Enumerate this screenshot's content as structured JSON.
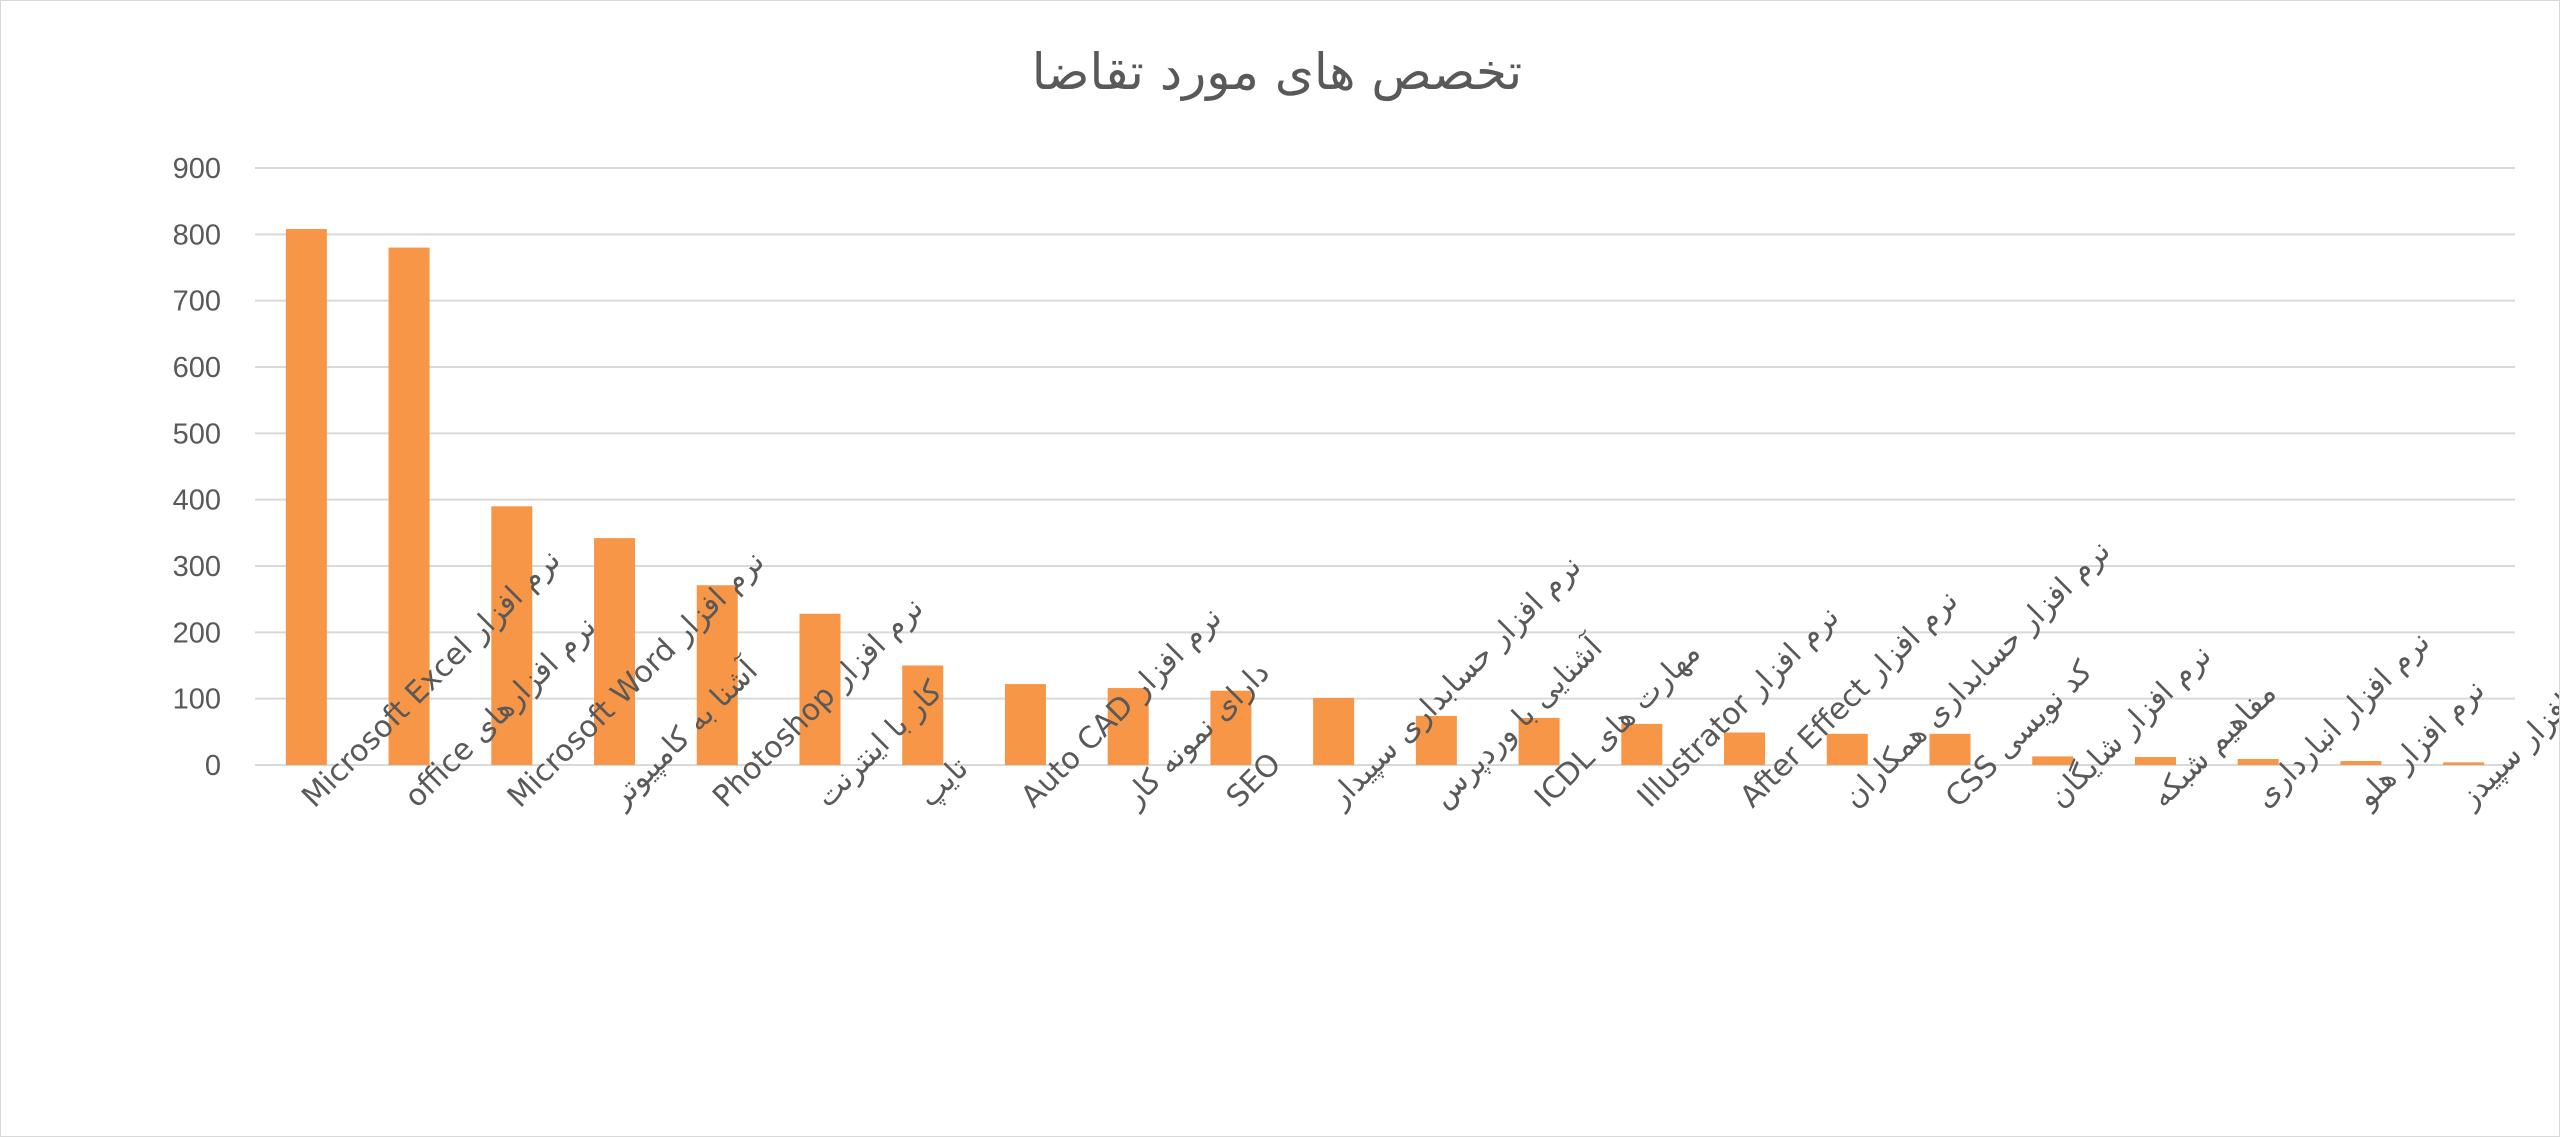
{
  "chart_data": {
    "type": "bar",
    "title": "تخصص های مورد تقاضا",
    "xlabel": "",
    "ylabel": "",
    "ylim": [
      0,
      900
    ],
    "yticks": [
      0,
      100,
      200,
      300,
      400,
      500,
      600,
      700,
      800,
      900
    ],
    "grid": true,
    "legend": "none",
    "bar_color": "#f79646",
    "categories": [
      "نرم افزار Microsoft Excel",
      "نرم افزارهای office",
      "نرم افزار Microsoft Word",
      "آشنا به کامپیوتر",
      "نرم افزار Photoshop",
      "کار با اینترنت",
      "تایپ",
      "نرم افزار Auto CAD",
      "دارای نمونه کار",
      "SEO",
      "نرم افزار حسابداری سپیدار",
      "آشنایی با وردپرس",
      "مهارت های ICDL",
      "نرم افزار Illustrator",
      "نرم افزار After Effect",
      "نرم افزار حسابداری همکاران",
      "کد نویسی CSS",
      "نرم افزار شایگان",
      "مفاهیم شبکه",
      "نرم افزار انبارداری",
      "نرم افزار هلو",
      "نرم افزار سپیدز"
    ],
    "values": [
      808,
      780,
      390,
      342,
      271,
      228,
      150,
      122,
      116,
      112,
      101,
      74,
      71,
      62,
      49,
      47,
      47,
      13,
      12,
      9,
      6,
      4
    ]
  }
}
